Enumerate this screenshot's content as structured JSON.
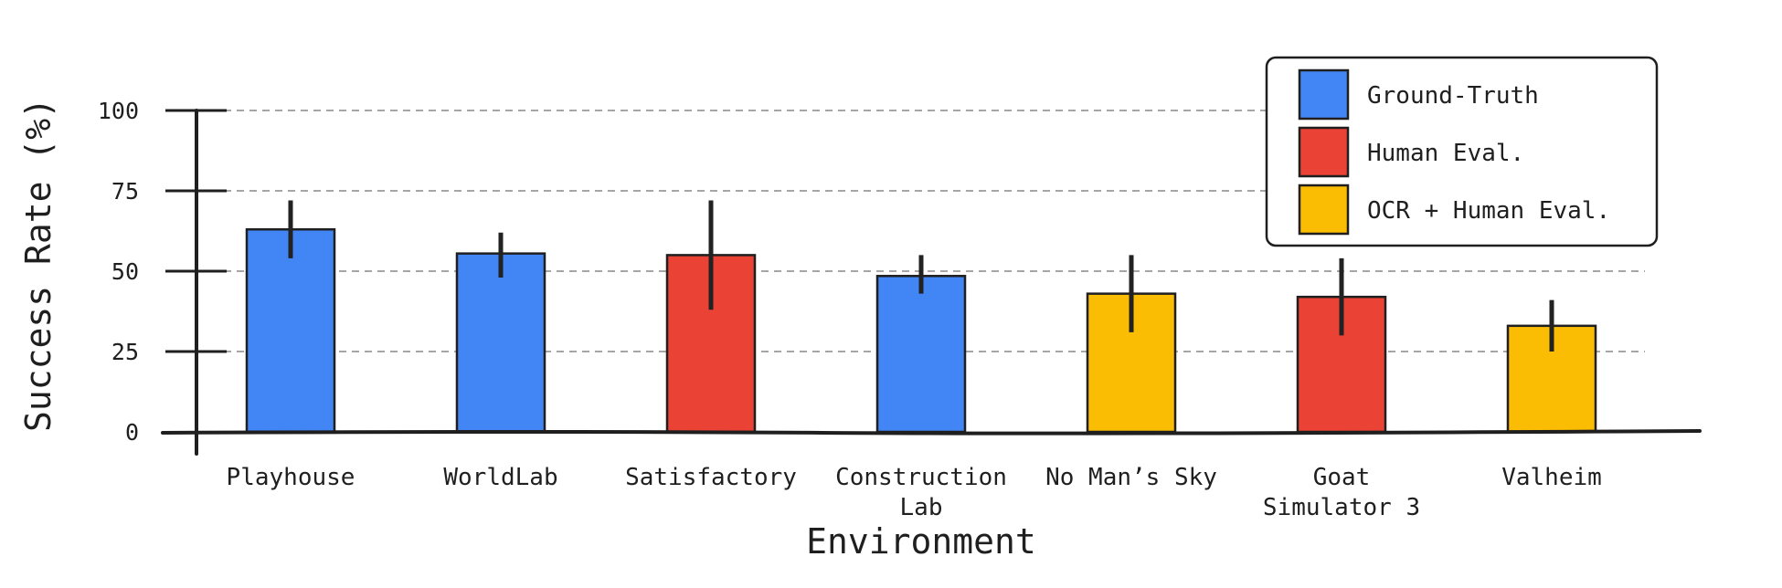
{
  "chart_data": {
    "type": "bar",
    "title": "",
    "xlabel": "Environment",
    "ylabel": "Success Rate (%)",
    "ylim": [
      0,
      100
    ],
    "yticks": [
      0,
      25,
      50,
      75,
      100
    ],
    "grid": true,
    "legend_position": "top-right",
    "categories": [
      [
        "Playhouse"
      ],
      [
        "WorldLab"
      ],
      [
        "Satisfactory"
      ],
      [
        "Construction",
        "Lab"
      ],
      [
        "No Man’s Sky"
      ],
      [
        "Goat",
        "Simulator 3"
      ],
      [
        "Valheim"
      ]
    ],
    "values": [
      63,
      55.5,
      55,
      48.5,
      43,
      42,
      33
    ],
    "error_low": [
      54,
      48,
      38,
      43,
      31,
      30,
      25
    ],
    "error_high": [
      72,
      62,
      72,
      55,
      55,
      54,
      41
    ],
    "bar_series": [
      "Ground-Truth",
      "Ground-Truth",
      "Human Eval.",
      "Ground-Truth",
      "OCR + Human Eval.",
      "Human Eval.",
      "OCR + Human Eval."
    ],
    "series": [
      {
        "name": "Ground-Truth",
        "color": "#4285F4"
      },
      {
        "name": "Human Eval.",
        "color": "#EA4335"
      },
      {
        "name": "OCR + Human Eval.",
        "color": "#FBBC04"
      }
    ]
  }
}
